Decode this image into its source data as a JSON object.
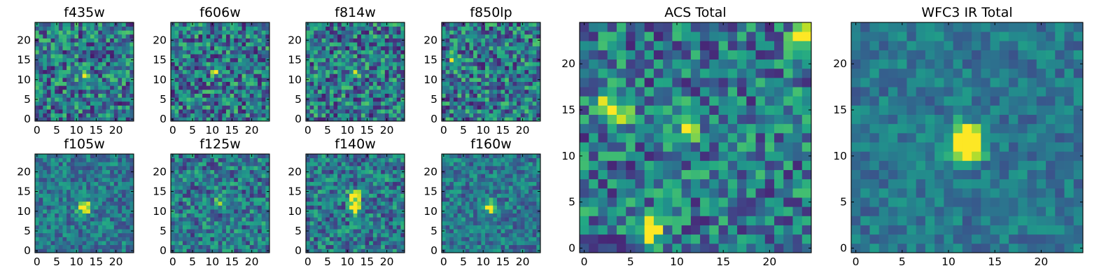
{
  "chart_data": {
    "type": "heatmap",
    "colormap": "viridis",
    "grid_size": 25,
    "grid": false,
    "panels": [
      {
        "id": "f435w",
        "title": "f435w",
        "xticks": [
          "0",
          "5",
          "10",
          "15",
          "20"
        ],
        "yticks": [
          "0",
          "5",
          "10",
          "15",
          "20"
        ],
        "xlim": [
          0,
          24
        ],
        "ylim": [
          0,
          24
        ],
        "hotspots": [
          {
            "x": 12,
            "y": 11,
            "v": 0.3
          }
        ],
        "noise": 0.55,
        "seed": 11
      },
      {
        "id": "f606w",
        "title": "f606w",
        "xticks": [
          "0",
          "5",
          "10",
          "15",
          "20"
        ],
        "yticks": [
          "0",
          "5",
          "10",
          "15",
          "20"
        ],
        "xlim": [
          0,
          24
        ],
        "ylim": [
          0,
          24
        ],
        "hotspots": [
          {
            "x": 11,
            "y": 12,
            "v": 0.35
          }
        ],
        "noise": 0.55,
        "seed": 23
      },
      {
        "id": "f814w",
        "title": "f814w",
        "xticks": [
          "0",
          "5",
          "10",
          "15",
          "20"
        ],
        "yticks": [
          "0",
          "5",
          "10",
          "15",
          "20"
        ],
        "xlim": [
          0,
          24
        ],
        "ylim": [
          0,
          24
        ],
        "hotspots": [
          {
            "x": 12,
            "y": 12,
            "v": 0.25
          }
        ],
        "noise": 0.55,
        "seed": 37
      },
      {
        "id": "f850lp",
        "title": "f850lp",
        "xticks": [
          "0",
          "5",
          "10",
          "15",
          "20"
        ],
        "yticks": [
          "0",
          "5",
          "10",
          "15",
          "20"
        ],
        "xlim": [
          0,
          24
        ],
        "ylim": [
          0,
          24
        ],
        "hotspots": [
          {
            "x": 3,
            "y": 15,
            "v": 0.4
          }
        ],
        "noise": 0.55,
        "seed": 41
      },
      {
        "id": "f105w",
        "title": "f105w",
        "xticks": [
          "0",
          "5",
          "10",
          "15",
          "20"
        ],
        "yticks": [
          "0",
          "5",
          "10",
          "15",
          "20"
        ],
        "xlim": [
          0,
          24
        ],
        "ylim": [
          0,
          24
        ],
        "hotspots": [
          {
            "x": 12,
            "y": 11,
            "v": 0.9
          }
        ],
        "noise": 0.35,
        "seed": 53
      },
      {
        "id": "f125w",
        "title": "f125w",
        "xticks": [
          "0",
          "5",
          "10",
          "15",
          "20"
        ],
        "yticks": [
          "0",
          "5",
          "10",
          "15",
          "20"
        ],
        "xlim": [
          0,
          24
        ],
        "ylim": [
          0,
          24
        ],
        "hotspots": [
          {
            "x": 12,
            "y": 12,
            "v": 0.35
          }
        ],
        "noise": 0.45,
        "seed": 61
      },
      {
        "id": "f140w",
        "title": "f140w",
        "xticks": [
          "0",
          "5",
          "10",
          "15",
          "20"
        ],
        "yticks": [
          "0",
          "5",
          "10",
          "15",
          "20"
        ],
        "xlim": [
          0,
          24
        ],
        "ylim": [
          0,
          24
        ],
        "hotspots": [
          {
            "x": 12,
            "y": 14,
            "v": 0.7
          },
          {
            "x": 12,
            "y": 11,
            "v": 0.7
          }
        ],
        "noise": 0.45,
        "seed": 71
      },
      {
        "id": "f160w",
        "title": "f160w",
        "xticks": [
          "0",
          "5",
          "10",
          "15",
          "20"
        ],
        "yticks": [
          "0",
          "5",
          "10",
          "15",
          "20"
        ],
        "xlim": [
          0,
          24
        ],
        "ylim": [
          0,
          24
        ],
        "hotspots": [
          {
            "x": 12,
            "y": 11,
            "v": 0.8
          }
        ],
        "noise": 0.35,
        "seed": 83
      },
      {
        "id": "acs-total",
        "title": "ACS Total",
        "xticks": [
          "0",
          "5",
          "10",
          "15",
          "20"
        ],
        "yticks": [
          "0",
          "5",
          "10",
          "15",
          "20"
        ],
        "xlim": [
          0,
          24
        ],
        "ylim": [
          0,
          24
        ],
        "hotspots": [
          {
            "x": 3,
            "y": 15,
            "v": 0.8
          },
          {
            "x": 7,
            "y": 2,
            "v": 0.8
          },
          {
            "x": 24,
            "y": 23,
            "v": 0.8
          },
          {
            "x": 11,
            "y": 13,
            "v": 0.4
          }
        ],
        "noise": 0.5,
        "seed": 97
      },
      {
        "id": "wfc3-ir-total",
        "title": "WFC3 IR Total",
        "xticks": [
          "0",
          "5",
          "10",
          "15",
          "20"
        ],
        "yticks": [
          "0",
          "5",
          "10",
          "15",
          "20"
        ],
        "xlim": [
          0,
          24
        ],
        "ylim": [
          0,
          24
        ],
        "hotspots": [
          {
            "x": 12,
            "y": 11,
            "v": 1.0
          },
          {
            "x": 12,
            "y": 12,
            "v": 0.95
          }
        ],
        "noise": 0.25,
        "seed": 101
      }
    ]
  }
}
